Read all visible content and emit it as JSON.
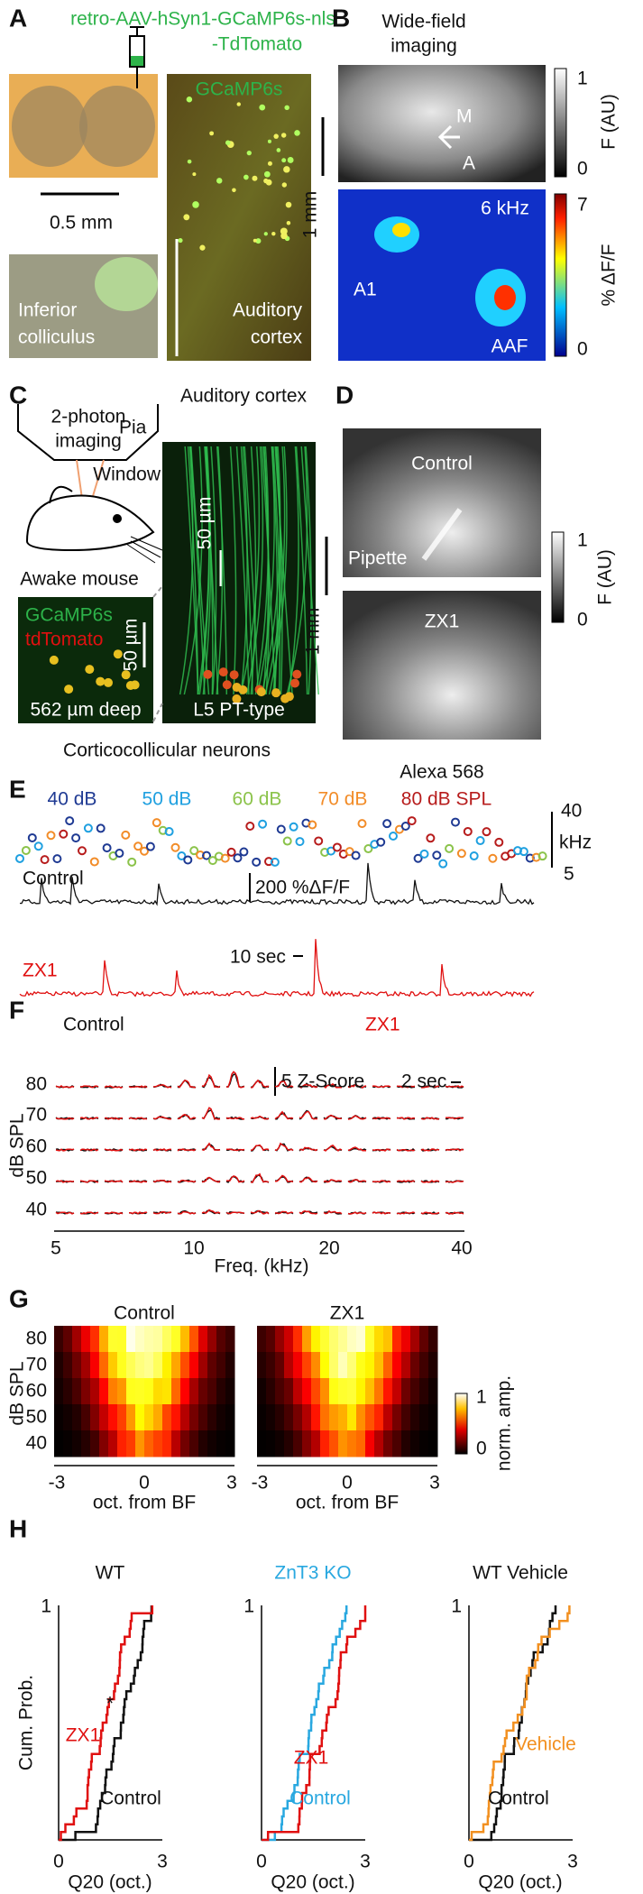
{
  "panels": [
    {
      "letter": "A",
      "labels": [
        "retro-AAV-hSyn1-GCaMP6s-nls",
        "-TdTomato",
        "0.5 mm",
        "Inferior",
        "colliculus",
        "GCaMP6s",
        "Auditory",
        "cortex"
      ]
    },
    {
      "letter": "B",
      "labels": [
        "Wide-field",
        "imaging",
        "1",
        "0",
        "F (AU)",
        "M",
        "A",
        "1 mm",
        "6 kHz",
        "7",
        "0",
        "% ΔF/F",
        "A1",
        "AAF"
      ]
    },
    {
      "letter": "C",
      "labels": [
        "2-photon",
        "imaging",
        "Auditory cortex",
        "Pia",
        "Window",
        "Awake mouse",
        "GCaMP6s",
        "tdTomato",
        "50 µm",
        "562 µm deep",
        "50 µm",
        "L5 PT-type",
        "Corticocollicular neurons"
      ]
    },
    {
      "letter": "D",
      "labels": [
        "Control",
        "Pipette",
        "1",
        "0",
        "F (AU)",
        "1 mm",
        "ZX1",
        "Alexa 568"
      ]
    },
    {
      "letter": "E",
      "labels": [
        "40 dB",
        "50 dB",
        "60 dB",
        "70 dB",
        "80 dB SPL",
        "40",
        "kHz",
        "5",
        "Control",
        "200 %ΔF/F",
        "ZX1",
        "10 sec"
      ]
    },
    {
      "letter": "F",
      "labels": [
        "Control",
        "ZX1",
        "5 Z-Score",
        "2 sec",
        "dB SPL",
        "80",
        "70",
        "60",
        "50",
        "40",
        "5",
        "10",
        "20",
        "40",
        "Freq. (kHz)"
      ]
    },
    {
      "letter": "G",
      "labels": [
        "Control",
        "ZX1",
        "dB SPL",
        "80",
        "70",
        "60",
        "50",
        "40",
        "-3",
        "0",
        "3",
        "-3",
        "0",
        "3",
        "oct. from BF",
        "oct. from BF",
        "1",
        "0",
        "norm. amp."
      ]
    },
    {
      "letter": "H",
      "labels": [
        "WT",
        "ZnT3 KO",
        "WT Vehicle",
        "Cum. Prob.",
        "1",
        "0",
        "3",
        "Q20 (oct.)",
        "1",
        "0",
        "3",
        "Q20 (oct.)",
        "1",
        "0",
        "3",
        "Q20 (oct.)",
        "ZX1",
        "*",
        "Control",
        "ZX1",
        "Control",
        "Vehicle",
        "Control"
      ]
    }
  ]
}
